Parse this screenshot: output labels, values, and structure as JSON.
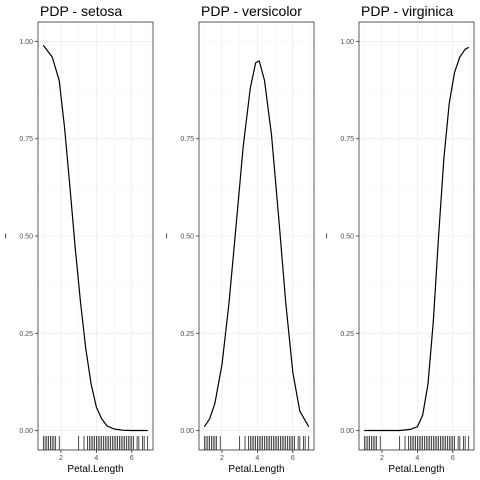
{
  "chart_data": [
    {
      "type": "line",
      "title": "PDP - setosa",
      "xlabel": "Petal.Length",
      "ylabel": "~",
      "xlim": [
        0.7,
        7.2
      ],
      "ylim": [
        -0.05,
        1.05
      ],
      "x_ticks": [
        2,
        4,
        6
      ],
      "y_ticks": [
        0.0,
        0.25,
        0.5,
        0.75,
        1.0
      ],
      "y_tick_labels": [
        "0.00",
        "0.25",
        "0.50",
        "0.75",
        "1.00"
      ],
      "grid": true,
      "series": [
        {
          "x": [
            1.0,
            1.5,
            1.9,
            2.2,
            2.5,
            2.8,
            3.1,
            3.4,
            3.7,
            4.0,
            4.3,
            4.6,
            5.0,
            5.5,
            6.0,
            6.5,
            6.9
          ],
          "y": [
            0.99,
            0.96,
            0.9,
            0.78,
            0.63,
            0.47,
            0.33,
            0.21,
            0.12,
            0.06,
            0.03,
            0.012,
            0.004,
            0.001,
            0.0,
            0.0,
            0.0
          ]
        }
      ]
    },
    {
      "type": "line",
      "title": "PDP - versicolor",
      "xlabel": "Petal.Length",
      "ylabel": "~",
      "xlim": [
        0.7,
        7.2
      ],
      "ylim": [
        -0.05,
        1.05
      ],
      "x_ticks": [
        2,
        4,
        6
      ],
      "y_ticks": [
        0.0,
        0.25,
        0.5,
        0.75
      ],
      "y_tick_labels": [
        "0.00",
        "0.25",
        "0.50",
        "0.75"
      ],
      "grid": true,
      "series": [
        {
          "x": [
            1.0,
            1.3,
            1.6,
            2.0,
            2.4,
            2.8,
            3.2,
            3.6,
            3.9,
            4.1,
            4.4,
            4.8,
            5.2,
            5.6,
            6.0,
            6.4,
            6.9
          ],
          "y": [
            0.01,
            0.03,
            0.07,
            0.17,
            0.33,
            0.53,
            0.73,
            0.88,
            0.945,
            0.95,
            0.9,
            0.76,
            0.55,
            0.33,
            0.15,
            0.05,
            0.01
          ]
        }
      ]
    },
    {
      "type": "line",
      "title": "PDP - virginica",
      "xlabel": "Petal.Length",
      "ylabel": "~",
      "xlim": [
        0.7,
        7.2
      ],
      "ylim": [
        -0.05,
        1.05
      ],
      "x_ticks": [
        2,
        4,
        6
      ],
      "y_ticks": [
        0.0,
        0.25,
        0.5,
        0.75,
        1.0
      ],
      "y_tick_labels": [
        "0.00",
        "0.25",
        "0.50",
        "0.75",
        "1.00"
      ],
      "grid": true,
      "series": [
        {
          "x": [
            1.0,
            2.0,
            3.0,
            3.6,
            4.0,
            4.3,
            4.6,
            4.9,
            5.2,
            5.5,
            5.8,
            6.1,
            6.4,
            6.7,
            6.9
          ],
          "y": [
            0.0,
            0.0,
            0.0,
            0.003,
            0.01,
            0.04,
            0.12,
            0.28,
            0.5,
            0.7,
            0.84,
            0.92,
            0.96,
            0.98,
            0.985
          ]
        }
      ]
    }
  ],
  "rug_x": [
    1.0,
    1.1,
    1.2,
    1.3,
    1.4,
    1.5,
    1.6,
    1.7,
    1.9,
    3.0,
    3.3,
    3.5,
    3.6,
    3.7,
    3.8,
    3.9,
    4.0,
    4.1,
    4.2,
    4.3,
    4.4,
    4.5,
    4.6,
    4.7,
    4.8,
    4.9,
    5.0,
    5.1,
    5.2,
    5.3,
    5.4,
    5.5,
    5.6,
    5.7,
    5.8,
    5.9,
    6.0,
    6.1,
    6.3,
    6.4,
    6.6,
    6.7,
    6.9
  ]
}
